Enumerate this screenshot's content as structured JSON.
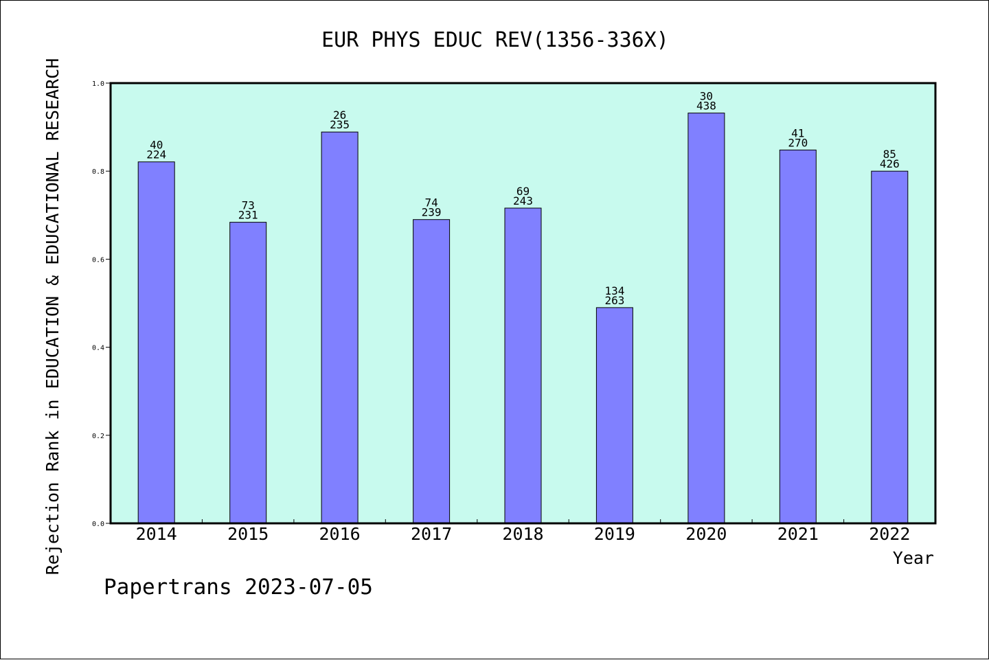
{
  "chart_data": {
    "type": "bar",
    "title": "EUR PHYS EDUC REV(1356-336X)",
    "xlabel": "Year",
    "ylabel": "Rejection Rank in EDUCATION & EDUCATIONAL RESEARCH",
    "ylim": [
      0,
      1.0
    ],
    "yticks": [
      "0.0",
      "0.2",
      "0.4",
      "0.6",
      "0.8",
      "1.0"
    ],
    "categories": [
      "2014",
      "2015",
      "2016",
      "2017",
      "2018",
      "2019",
      "2020",
      "2021",
      "2022"
    ],
    "values": [
      0.821,
      0.684,
      0.889,
      0.69,
      0.716,
      0.49,
      0.932,
      0.848,
      0.8
    ],
    "bar_labels": [
      [
        "40",
        "224"
      ],
      [
        "73",
        "231"
      ],
      [
        "26",
        "235"
      ],
      [
        "74",
        "239"
      ],
      [
        "69",
        "243"
      ],
      [
        "134",
        "263"
      ],
      [
        "30",
        "438"
      ],
      [
        "41",
        "270"
      ],
      [
        "85",
        "426"
      ]
    ],
    "grid": false,
    "colors": {
      "bar": "#8080ff",
      "plot_background": "#c8faee",
      "frame": "#000000"
    }
  },
  "footer": {
    "watermark": "Papertrans 2023-07-05"
  }
}
